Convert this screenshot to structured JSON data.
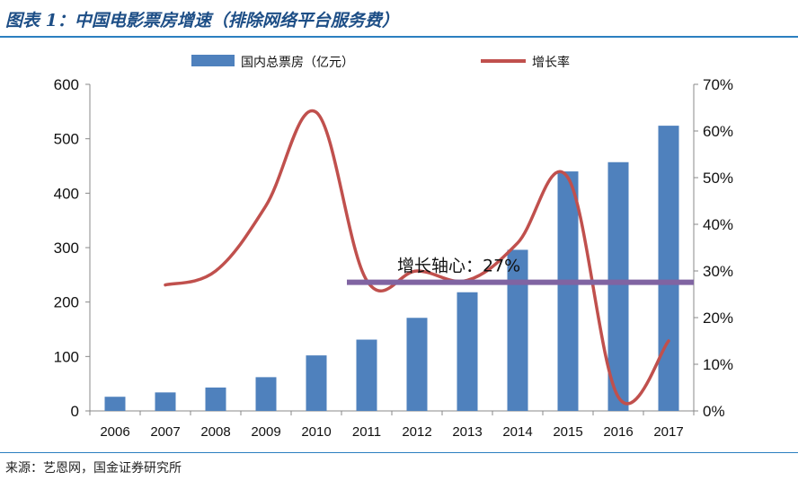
{
  "header": {
    "title": "图表 1：中国电影票房增速（排除网络平台服务费）"
  },
  "footer": {
    "source": "来源：艺恩网，国金证券研究所"
  },
  "colors": {
    "bar": "#4f81bd",
    "line": "#c0504d",
    "axis_line": "#8064a2",
    "title": "#1d4e86",
    "rule": "#2b7fc0"
  },
  "chart_data": {
    "type": "bar",
    "categories": [
      "2006",
      "2007",
      "2008",
      "2009",
      "2010",
      "2011",
      "2012",
      "2013",
      "2014",
      "2015",
      "2016",
      "2017"
    ],
    "series": [
      {
        "name": "国内总票房（亿元）",
        "type": "bar",
        "axis": "left",
        "values": [
          26,
          34,
          43,
          62,
          102,
          131,
          171,
          218,
          296,
          440,
          457,
          524
        ]
      },
      {
        "name": "增长率",
        "type": "line",
        "axis": "right",
        "values": [
          null,
          0.27,
          0.3,
          0.44,
          0.64,
          0.28,
          0.3,
          0.28,
          0.36,
          0.5,
          0.03,
          0.15
        ]
      }
    ],
    "y_left": {
      "range": [
        0,
        600
      ],
      "ticks": [
        "0",
        "100",
        "200",
        "300",
        "400",
        "500",
        "600"
      ]
    },
    "y_right": {
      "range": [
        0,
        0.7
      ],
      "ticks": [
        "0%",
        "10%",
        "20%",
        "30%",
        "40%",
        "50%",
        "60%",
        "70%"
      ]
    },
    "reference_line": {
      "value": 0.27,
      "axis": "right",
      "label": "增长轴心：27%"
    },
    "legend": {
      "placement": "top"
    },
    "grid": false
  }
}
